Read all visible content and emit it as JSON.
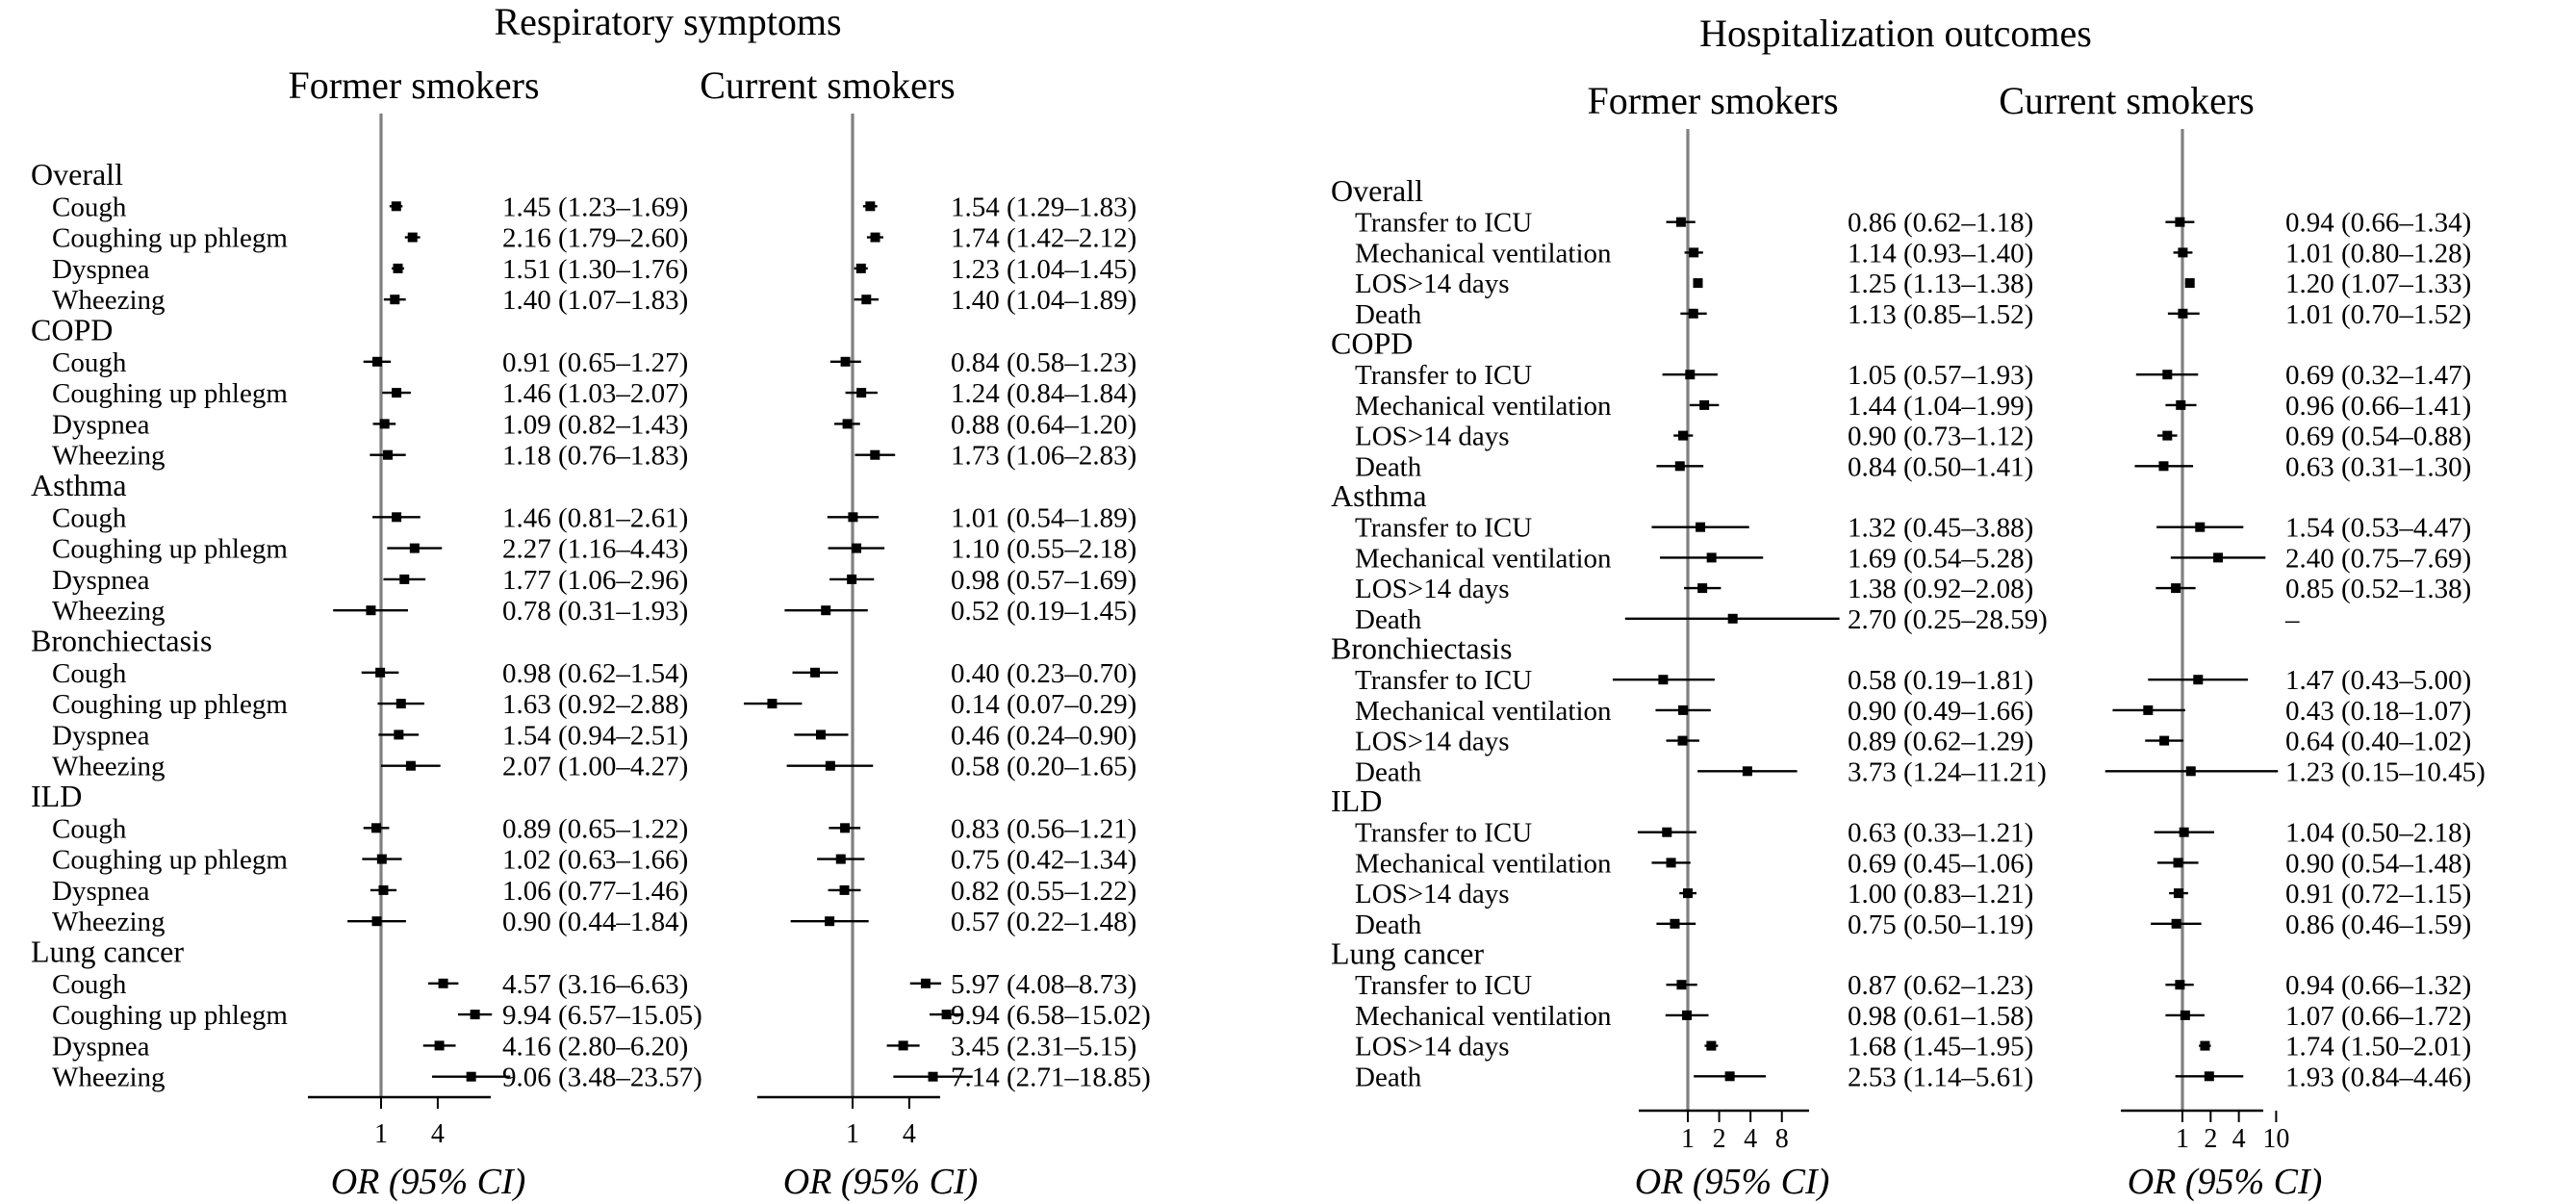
{
  "colors": {
    "reference_line": "#808080",
    "ink": "#000000"
  },
  "chart_data": [
    {
      "type": "forest",
      "section_title": "Respiratory symptoms",
      "title": "Former smokers",
      "xlabel": "OR (95% CI)",
      "xscale": "log",
      "xlim": [
        0.08,
        30
      ],
      "ticks": [
        1,
        4
      ],
      "rows": [
        {
          "kind": "group",
          "label": "Overall"
        },
        {
          "label": "Cough",
          "or": 1.45,
          "lo": 1.23,
          "hi": 1.69,
          "text": "1.45 (1.23–1.69)"
        },
        {
          "label": "Coughing up phlegm",
          "or": 2.16,
          "lo": 1.79,
          "hi": 2.6,
          "text": "2.16 (1.79–2.60)"
        },
        {
          "label": "Dyspnea",
          "or": 1.51,
          "lo": 1.3,
          "hi": 1.76,
          "text": "1.51 (1.30–1.76)"
        },
        {
          "label": "Wheezing",
          "or": 1.4,
          "lo": 1.07,
          "hi": 1.83,
          "text": "1.40 (1.07–1.83)"
        },
        {
          "kind": "group",
          "label": "COPD"
        },
        {
          "label": "Cough",
          "or": 0.91,
          "lo": 0.65,
          "hi": 1.27,
          "text": "0.91 (0.65–1.27)"
        },
        {
          "label": "Coughing up phlegm",
          "or": 1.46,
          "lo": 1.03,
          "hi": 2.07,
          "text": "1.46 (1.03–2.07)"
        },
        {
          "label": "Dyspnea",
          "or": 1.09,
          "lo": 0.82,
          "hi": 1.43,
          "text": "1.09 (0.82–1.43)"
        },
        {
          "label": "Wheezing",
          "or": 1.18,
          "lo": 0.76,
          "hi": 1.83,
          "text": "1.18 (0.76–1.83)"
        },
        {
          "kind": "group",
          "label": "Asthma"
        },
        {
          "label": "Cough",
          "or": 1.46,
          "lo": 0.81,
          "hi": 2.61,
          "text": "1.46 (0.81–2.61)"
        },
        {
          "label": "Coughing up phlegm",
          "or": 2.27,
          "lo": 1.16,
          "hi": 4.43,
          "text": "2.27 (1.16–4.43)"
        },
        {
          "label": "Dyspnea",
          "or": 1.77,
          "lo": 1.06,
          "hi": 2.96,
          "text": "1.77 (1.06–2.96)"
        },
        {
          "label": "Wheezing",
          "or": 0.78,
          "lo": 0.31,
          "hi": 1.93,
          "text": "0.78 (0.31–1.93)"
        },
        {
          "kind": "group",
          "label": "Bronchiectasis"
        },
        {
          "label": "Cough",
          "or": 0.98,
          "lo": 0.62,
          "hi": 1.54,
          "text": "0.98 (0.62–1.54)"
        },
        {
          "label": "Coughing up phlegm",
          "or": 1.63,
          "lo": 0.92,
          "hi": 2.88,
          "text": "1.63 (0.92–2.88)"
        },
        {
          "label": "Dyspnea",
          "or": 1.54,
          "lo": 0.94,
          "hi": 2.51,
          "text": "1.54 (0.94–2.51)"
        },
        {
          "label": "Wheezing",
          "or": 2.07,
          "lo": 1.0,
          "hi": 4.27,
          "text": "2.07 (1.00–4.27)"
        },
        {
          "kind": "group",
          "label": "ILD"
        },
        {
          "label": "Cough",
          "or": 0.89,
          "lo": 0.65,
          "hi": 1.22,
          "text": "0.89 (0.65–1.22)"
        },
        {
          "label": "Coughing up phlegm",
          "or": 1.02,
          "lo": 0.63,
          "hi": 1.66,
          "text": "1.02 (0.63–1.66)"
        },
        {
          "label": "Dyspnea",
          "or": 1.06,
          "lo": 0.77,
          "hi": 1.46,
          "text": "1.06 (0.77–1.46)"
        },
        {
          "label": "Wheezing",
          "or": 0.9,
          "lo": 0.44,
          "hi": 1.84,
          "text": "0.90 (0.44–1.84)"
        },
        {
          "kind": "group",
          "label": "Lung cancer"
        },
        {
          "label": "Cough",
          "or": 4.57,
          "lo": 3.16,
          "hi": 6.63,
          "text": "4.57 (3.16–6.63)"
        },
        {
          "label": "Coughing up phlegm",
          "or": 9.94,
          "lo": 6.57,
          "hi": 15.05,
          "text": "9.94 (6.57–15.05)"
        },
        {
          "label": "Dyspnea",
          "or": 4.16,
          "lo": 2.8,
          "hi": 6.2,
          "text": "4.16 (2.80–6.20)"
        },
        {
          "label": "Wheezing",
          "or": 9.06,
          "lo": 3.48,
          "hi": 23.57,
          "text": "9.06 (3.48–23.57)"
        }
      ]
    },
    {
      "type": "forest",
      "title": "Current smokers",
      "xlabel": "OR (95% CI)",
      "xscale": "log",
      "xlim": [
        0.08,
        30
      ],
      "ticks": [
        1,
        4
      ],
      "rows": [
        {
          "kind": "group",
          "label": "Overall"
        },
        {
          "label": "Cough",
          "or": 1.54,
          "lo": 1.29,
          "hi": 1.83,
          "text": "1.54 (1.29–1.83)"
        },
        {
          "label": "Coughing up phlegm",
          "or": 1.74,
          "lo": 1.42,
          "hi": 2.12,
          "text": "1.74 (1.42–2.12)"
        },
        {
          "label": "Dyspnea",
          "or": 1.23,
          "lo": 1.04,
          "hi": 1.45,
          "text": "1.23 (1.04–1.45)"
        },
        {
          "label": "Wheezing",
          "or": 1.4,
          "lo": 1.04,
          "hi": 1.89,
          "text": "1.40 (1.04–1.89)"
        },
        {
          "kind": "group",
          "label": "COPD"
        },
        {
          "label": "Cough",
          "or": 0.84,
          "lo": 0.58,
          "hi": 1.23,
          "text": "0.84 (0.58–1.23)"
        },
        {
          "label": "Coughing up phlegm",
          "or": 1.24,
          "lo": 0.84,
          "hi": 1.84,
          "text": "1.24 (0.84–1.84)"
        },
        {
          "label": "Dyspnea",
          "or": 0.88,
          "lo": 0.64,
          "hi": 1.2,
          "text": "0.88 (0.64–1.20)"
        },
        {
          "label": "Wheezing",
          "or": 1.73,
          "lo": 1.06,
          "hi": 2.83,
          "text": "1.73 (1.06–2.83)"
        },
        {
          "kind": "group",
          "label": "Asthma"
        },
        {
          "label": "Cough",
          "or": 1.01,
          "lo": 0.54,
          "hi": 1.89,
          "text": "1.01 (0.54–1.89)"
        },
        {
          "label": "Coughing up phlegm",
          "or": 1.1,
          "lo": 0.55,
          "hi": 2.18,
          "text": "1.10 (0.55–2.18)"
        },
        {
          "label": "Dyspnea",
          "or": 0.98,
          "lo": 0.57,
          "hi": 1.69,
          "text": "0.98 (0.57–1.69)"
        },
        {
          "label": "Wheezing",
          "or": 0.52,
          "lo": 0.19,
          "hi": 1.45,
          "text": "0.52 (0.19–1.45)"
        },
        {
          "kind": "group",
          "label": "Bronchiectasis"
        },
        {
          "label": "Cough",
          "or": 0.4,
          "lo": 0.23,
          "hi": 0.7,
          "text": "0.40 (0.23–0.70)"
        },
        {
          "label": "Coughing up phlegm",
          "or": 0.14,
          "lo": 0.07,
          "hi": 0.29,
          "text": "0.14 (0.07–0.29)"
        },
        {
          "label": "Dyspnea",
          "or": 0.46,
          "lo": 0.24,
          "hi": 0.9,
          "text": "0.46 (0.24–0.90)"
        },
        {
          "label": "Wheezing",
          "or": 0.58,
          "lo": 0.2,
          "hi": 1.65,
          "text": "0.58 (0.20–1.65)"
        },
        {
          "kind": "group",
          "label": "ILD"
        },
        {
          "label": "Cough",
          "or": 0.83,
          "lo": 0.56,
          "hi": 1.21,
          "text": "0.83 (0.56–1.21)"
        },
        {
          "label": "Coughing up phlegm",
          "or": 0.75,
          "lo": 0.42,
          "hi": 1.34,
          "text": "0.75 (0.42–1.34)"
        },
        {
          "label": "Dyspnea",
          "or": 0.82,
          "lo": 0.55,
          "hi": 1.22,
          "text": "0.82 (0.55–1.22)"
        },
        {
          "label": "Wheezing",
          "or": 0.57,
          "lo": 0.22,
          "hi": 1.48,
          "text": "0.57 (0.22–1.48)"
        },
        {
          "kind": "group",
          "label": "Lung cancer"
        },
        {
          "label": "Cough",
          "or": 5.97,
          "lo": 4.08,
          "hi": 8.73,
          "text": "5.97 (4.08–8.73)"
        },
        {
          "label": "Coughing up phlegm",
          "or": 9.94,
          "lo": 6.58,
          "hi": 15.02,
          "text": "9.94 (6.58–15.02)"
        },
        {
          "label": "Dyspnea",
          "or": 3.45,
          "lo": 2.31,
          "hi": 5.15,
          "text": "3.45 (2.31–5.15)"
        },
        {
          "label": "Wheezing",
          "or": 7.14,
          "lo": 2.71,
          "hi": 18.85,
          "text": "7.14 (2.71–18.85)"
        }
      ]
    },
    {
      "type": "forest",
      "section_title": "Hospitalization outcomes",
      "title": "Former smokers",
      "xlabel": "OR (95% CI)",
      "xscale": "log",
      "xlim": [
        0.17,
        30
      ],
      "ticks": [
        1,
        2,
        4,
        8
      ],
      "rows": [
        {
          "kind": "group",
          "label": "Overall"
        },
        {
          "label": "Transfer to ICU",
          "or": 0.86,
          "lo": 0.62,
          "hi": 1.18,
          "text": "0.86 (0.62–1.18)"
        },
        {
          "label": "Mechanical ventilation",
          "or": 1.14,
          "lo": 0.93,
          "hi": 1.4,
          "text": "1.14 (0.93–1.40)"
        },
        {
          "label": "LOS>14 days",
          "or": 1.25,
          "lo": 1.13,
          "hi": 1.38,
          "text": "1.25 (1.13–1.38)"
        },
        {
          "label": "Death",
          "or": 1.13,
          "lo": 0.85,
          "hi": 1.52,
          "text": "1.13 (0.85–1.52)"
        },
        {
          "kind": "group",
          "label": "COPD"
        },
        {
          "label": "Transfer to ICU",
          "or": 1.05,
          "lo": 0.57,
          "hi": 1.93,
          "text": "1.05 (0.57–1.93)"
        },
        {
          "label": "Mechanical ventilation",
          "or": 1.44,
          "lo": 1.04,
          "hi": 1.99,
          "text": "1.44 (1.04–1.99)"
        },
        {
          "label": "LOS>14 days",
          "or": 0.9,
          "lo": 0.73,
          "hi": 1.12,
          "text": "0.90 (0.73–1.12)"
        },
        {
          "label": "Death",
          "or": 0.84,
          "lo": 0.5,
          "hi": 1.41,
          "text": "0.84 (0.50–1.41)"
        },
        {
          "kind": "group",
          "label": "Asthma"
        },
        {
          "label": "Transfer to ICU",
          "or": 1.32,
          "lo": 0.45,
          "hi": 3.88,
          "text": "1.32 (0.45–3.88)"
        },
        {
          "label": "Mechanical ventilation",
          "or": 1.69,
          "lo": 0.54,
          "hi": 5.28,
          "text": "1.69 (0.54–5.28)"
        },
        {
          "label": "LOS>14 days",
          "or": 1.38,
          "lo": 0.92,
          "hi": 2.08,
          "text": "1.38 (0.92–2.08)"
        },
        {
          "label": "Death",
          "or": 2.7,
          "lo": 0.25,
          "hi": 28.59,
          "text": "2.70 (0.25–28.59)"
        },
        {
          "kind": "group",
          "label": "Bronchiectasis"
        },
        {
          "label": "Transfer to ICU",
          "or": 0.58,
          "lo": 0.19,
          "hi": 1.81,
          "text": "0.58 (0.19–1.81)"
        },
        {
          "label": "Mechanical ventilation",
          "or": 0.9,
          "lo": 0.49,
          "hi": 1.66,
          "text": "0.90 (0.49–1.66)"
        },
        {
          "label": "LOS>14 days",
          "or": 0.89,
          "lo": 0.62,
          "hi": 1.29,
          "text": "0.89 (0.62–1.29)"
        },
        {
          "label": "Death",
          "or": 3.73,
          "lo": 1.24,
          "hi": 11.21,
          "text": "3.73 (1.24–11.21)"
        },
        {
          "kind": "group",
          "label": "ILD"
        },
        {
          "label": "Transfer to ICU",
          "or": 0.63,
          "lo": 0.33,
          "hi": 1.21,
          "text": "0.63 (0.33–1.21)"
        },
        {
          "label": "Mechanical ventilation",
          "or": 0.69,
          "lo": 0.45,
          "hi": 1.06,
          "text": "0.69 (0.45–1.06)"
        },
        {
          "label": "LOS>14 days",
          "or": 1.0,
          "lo": 0.83,
          "hi": 1.21,
          "text": "1.00 (0.83–1.21)"
        },
        {
          "label": "Death",
          "or": 0.75,
          "lo": 0.5,
          "hi": 1.19,
          "text": "0.75 (0.50–1.19)"
        },
        {
          "kind": "group",
          "label": "Lung cancer"
        },
        {
          "label": "Transfer to ICU",
          "or": 0.87,
          "lo": 0.62,
          "hi": 1.23,
          "text": "0.87 (0.62–1.23)"
        },
        {
          "label": "Mechanical ventilation",
          "or": 0.98,
          "lo": 0.61,
          "hi": 1.58,
          "text": "0.98 (0.61–1.58)"
        },
        {
          "label": "LOS>14 days",
          "or": 1.68,
          "lo": 1.45,
          "hi": 1.95,
          "text": "1.68 (1.45–1.95)"
        },
        {
          "label": "Death",
          "or": 2.53,
          "lo": 1.14,
          "hi": 5.61,
          "text": "2.53 (1.14–5.61)"
        }
      ]
    },
    {
      "type": "forest",
      "title": "Current smokers",
      "xlabel": "OR (95% CI)",
      "xscale": "log",
      "xlim": [
        0.1,
        16
      ],
      "ticks": [
        1,
        2,
        4,
        10
      ],
      "rows": [
        {
          "kind": "group",
          "label": "Overall"
        },
        {
          "label": "Transfer to ICU",
          "or": 0.94,
          "lo": 0.66,
          "hi": 1.34,
          "text": "0.94 (0.66–1.34)"
        },
        {
          "label": "Mechanical ventilation",
          "or": 1.01,
          "lo": 0.8,
          "hi": 1.28,
          "text": "1.01 (0.80–1.28)"
        },
        {
          "label": "LOS>14 days",
          "or": 1.2,
          "lo": 1.07,
          "hi": 1.33,
          "text": "1.20 (1.07–1.33)"
        },
        {
          "label": "Death",
          "or": 1.01,
          "lo": 0.7,
          "hi": 1.52,
          "text": "1.01 (0.70–1.52)"
        },
        {
          "kind": "group",
          "label": "COPD"
        },
        {
          "label": "Transfer to ICU",
          "or": 0.69,
          "lo": 0.32,
          "hi": 1.47,
          "text": "0.69 (0.32–1.47)"
        },
        {
          "label": "Mechanical ventilation",
          "or": 0.96,
          "lo": 0.66,
          "hi": 1.41,
          "text": "0.96 (0.66–1.41)"
        },
        {
          "label": "LOS>14 days",
          "or": 0.69,
          "lo": 0.54,
          "hi": 0.88,
          "text": "0.69 (0.54–0.88)"
        },
        {
          "label": "Death",
          "or": 0.63,
          "lo": 0.31,
          "hi": 1.3,
          "text": "0.63 (0.31–1.30)"
        },
        {
          "kind": "group",
          "label": "Asthma"
        },
        {
          "label": "Transfer to ICU",
          "or": 1.54,
          "lo": 0.53,
          "hi": 4.47,
          "text": "1.54 (0.53–4.47)"
        },
        {
          "label": "Mechanical ventilation",
          "or": 2.4,
          "lo": 0.75,
          "hi": 7.69,
          "text": "2.40 (0.75–7.69)"
        },
        {
          "label": "LOS>14 days",
          "or": 0.85,
          "lo": 0.52,
          "hi": 1.38,
          "text": "0.85 (0.52–1.38)"
        },
        {
          "label": "Death",
          "or": null,
          "lo": null,
          "hi": null,
          "text": "–"
        },
        {
          "kind": "group",
          "label": "Bronchiectasis"
        },
        {
          "label": "Transfer to ICU",
          "or": 1.47,
          "lo": 0.43,
          "hi": 5.0,
          "text": "1.47 (0.43–5.00)"
        },
        {
          "label": "Mechanical ventilation",
          "or": 0.43,
          "lo": 0.18,
          "hi": 1.07,
          "text": "0.43 (0.18–1.07)"
        },
        {
          "label": "LOS>14 days",
          "or": 0.64,
          "lo": 0.4,
          "hi": 1.02,
          "text": "0.64 (0.40–1.02)"
        },
        {
          "label": "Death",
          "or": 1.23,
          "lo": 0.15,
          "hi": 10.45,
          "text": "1.23 (0.15–10.45)"
        },
        {
          "kind": "group",
          "label": "ILD"
        },
        {
          "label": "Transfer to ICU",
          "or": 1.04,
          "lo": 0.5,
          "hi": 2.18,
          "text": "1.04 (0.50–2.18)"
        },
        {
          "label": "Mechanical ventilation",
          "or": 0.9,
          "lo": 0.54,
          "hi": 1.48,
          "text": "0.90 (0.54–1.48)"
        },
        {
          "label": "LOS>14 days",
          "or": 0.91,
          "lo": 0.72,
          "hi": 1.15,
          "text": "0.91 (0.72–1.15)"
        },
        {
          "label": "Death",
          "or": 0.86,
          "lo": 0.46,
          "hi": 1.59,
          "text": "0.86 (0.46–1.59)"
        },
        {
          "kind": "group",
          "label": "Lung cancer"
        },
        {
          "label": "Transfer to ICU",
          "or": 0.94,
          "lo": 0.66,
          "hi": 1.32,
          "text": "0.94 (0.66–1.32)"
        },
        {
          "label": "Mechanical ventilation",
          "or": 1.07,
          "lo": 0.66,
          "hi": 1.72,
          "text": "1.07 (0.66–1.72)"
        },
        {
          "label": "LOS>14 days",
          "or": 1.74,
          "lo": 1.5,
          "hi": 2.01,
          "text": "1.74 (1.50–2.01)"
        },
        {
          "label": "Death",
          "or": 1.93,
          "lo": 0.84,
          "hi": 4.46,
          "text": "1.93 (0.84–4.46)"
        }
      ]
    }
  ]
}
